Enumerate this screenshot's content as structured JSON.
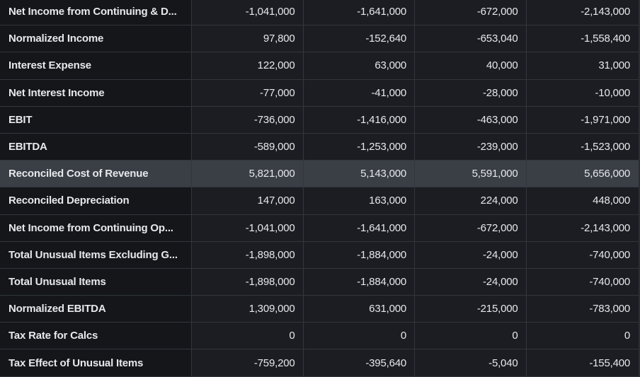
{
  "table": {
    "rows": [
      {
        "label": "Net Income from Continuing & D...",
        "values": [
          "-1,041,000",
          "-1,641,000",
          "-672,000",
          "-2,143,000"
        ]
      },
      {
        "label": "Normalized Income",
        "values": [
          "97,800",
          "-152,640",
          "-653,040",
          "-1,558,400"
        ]
      },
      {
        "label": "Interest Expense",
        "values": [
          "122,000",
          "63,000",
          "40,000",
          "31,000"
        ]
      },
      {
        "label": "Net Interest Income",
        "values": [
          "-77,000",
          "-41,000",
          "-28,000",
          "-10,000"
        ]
      },
      {
        "label": "EBIT",
        "values": [
          "-736,000",
          "-1,416,000",
          "-463,000",
          "-1,971,000"
        ]
      },
      {
        "label": "EBITDA",
        "values": [
          "-589,000",
          "-1,253,000",
          "-239,000",
          "-1,523,000"
        ]
      },
      {
        "label": "Reconciled Cost of Revenue",
        "values": [
          "5,821,000",
          "5,143,000",
          "5,591,000",
          "5,656,000"
        ],
        "hover": true
      },
      {
        "label": "Reconciled Depreciation",
        "values": [
          "147,000",
          "163,000",
          "224,000",
          "448,000"
        ]
      },
      {
        "label": "Net Income from Continuing Op...",
        "values": [
          "-1,041,000",
          "-1,641,000",
          "-672,000",
          "-2,143,000"
        ]
      },
      {
        "label": "Total Unusual Items Excluding G...",
        "values": [
          "-1,898,000",
          "-1,884,000",
          "-24,000",
          "-740,000"
        ]
      },
      {
        "label": "Total Unusual Items",
        "values": [
          "-1,898,000",
          "-1,884,000",
          "-24,000",
          "-740,000"
        ]
      },
      {
        "label": "Normalized EBITDA",
        "values": [
          "1,309,000",
          "631,000",
          "-215,000",
          "-783,000"
        ]
      },
      {
        "label": "Tax Rate for Calcs",
        "values": [
          "0",
          "0",
          "0",
          "0"
        ]
      },
      {
        "label": "Tax Effect of Unusual Items",
        "values": [
          "-759,200",
          "-395,640",
          "-5,040",
          "-155,400"
        ]
      }
    ]
  },
  "colors": {
    "background": "#1b1d22",
    "label_column": "#141619",
    "hover_row": "#3a3f46",
    "grid": "#32363d",
    "text": "#e6e8eb"
  }
}
